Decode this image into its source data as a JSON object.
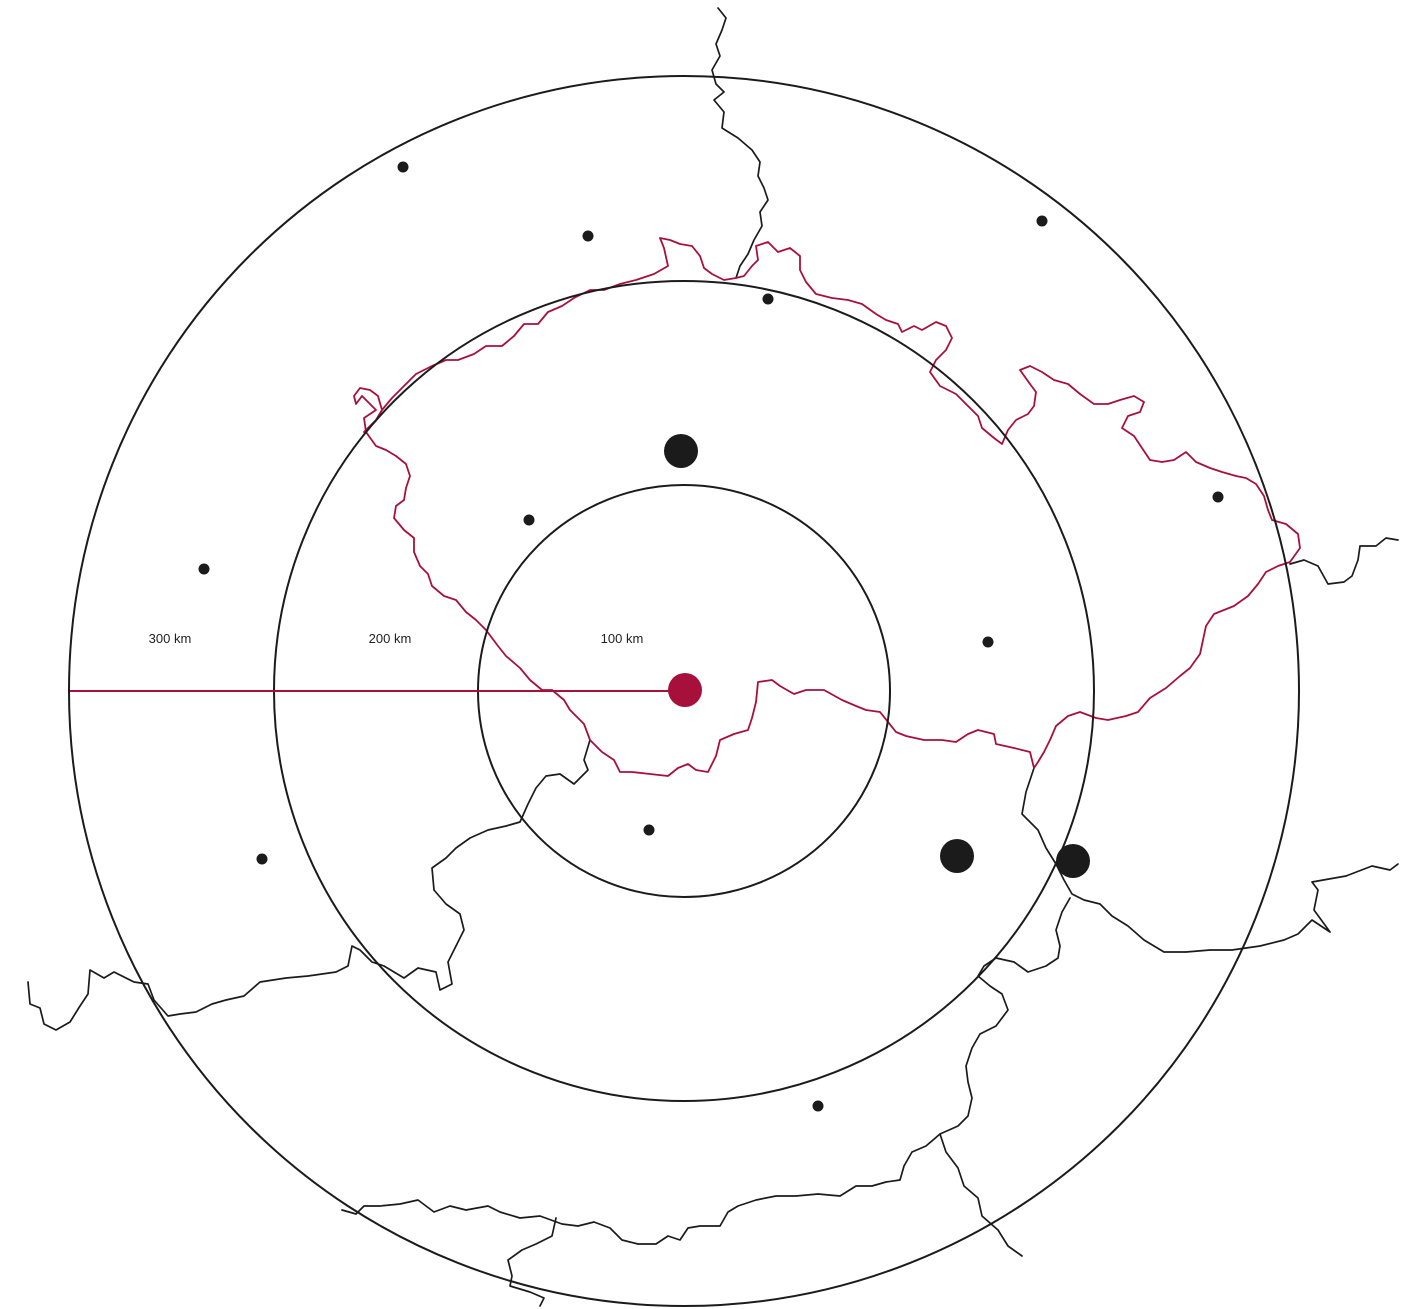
{
  "colors": {
    "accent": "#a8103c",
    "ink": "#1b1b1b"
  },
  "rings": [
    {
      "radius_km": 100,
      "label": "100 km"
    },
    {
      "radius_km": 200,
      "label": "200 km"
    },
    {
      "radius_km": 300,
      "label": "300 km"
    }
  ],
  "center_marker": {
    "type": "highlighted-location-dot"
  },
  "cities": [
    {
      "size": "small"
    },
    {
      "size": "small"
    },
    {
      "size": "small"
    },
    {
      "size": "small"
    },
    {
      "size": "small"
    },
    {
      "size": "small"
    },
    {
      "size": "small"
    },
    {
      "size": "small"
    },
    {
      "size": "small"
    },
    {
      "size": "small"
    },
    {
      "size": "small"
    },
    {
      "size": "large"
    },
    {
      "size": "large"
    },
    {
      "size": "large"
    }
  ],
  "highlighted_country": "outline-accent"
}
